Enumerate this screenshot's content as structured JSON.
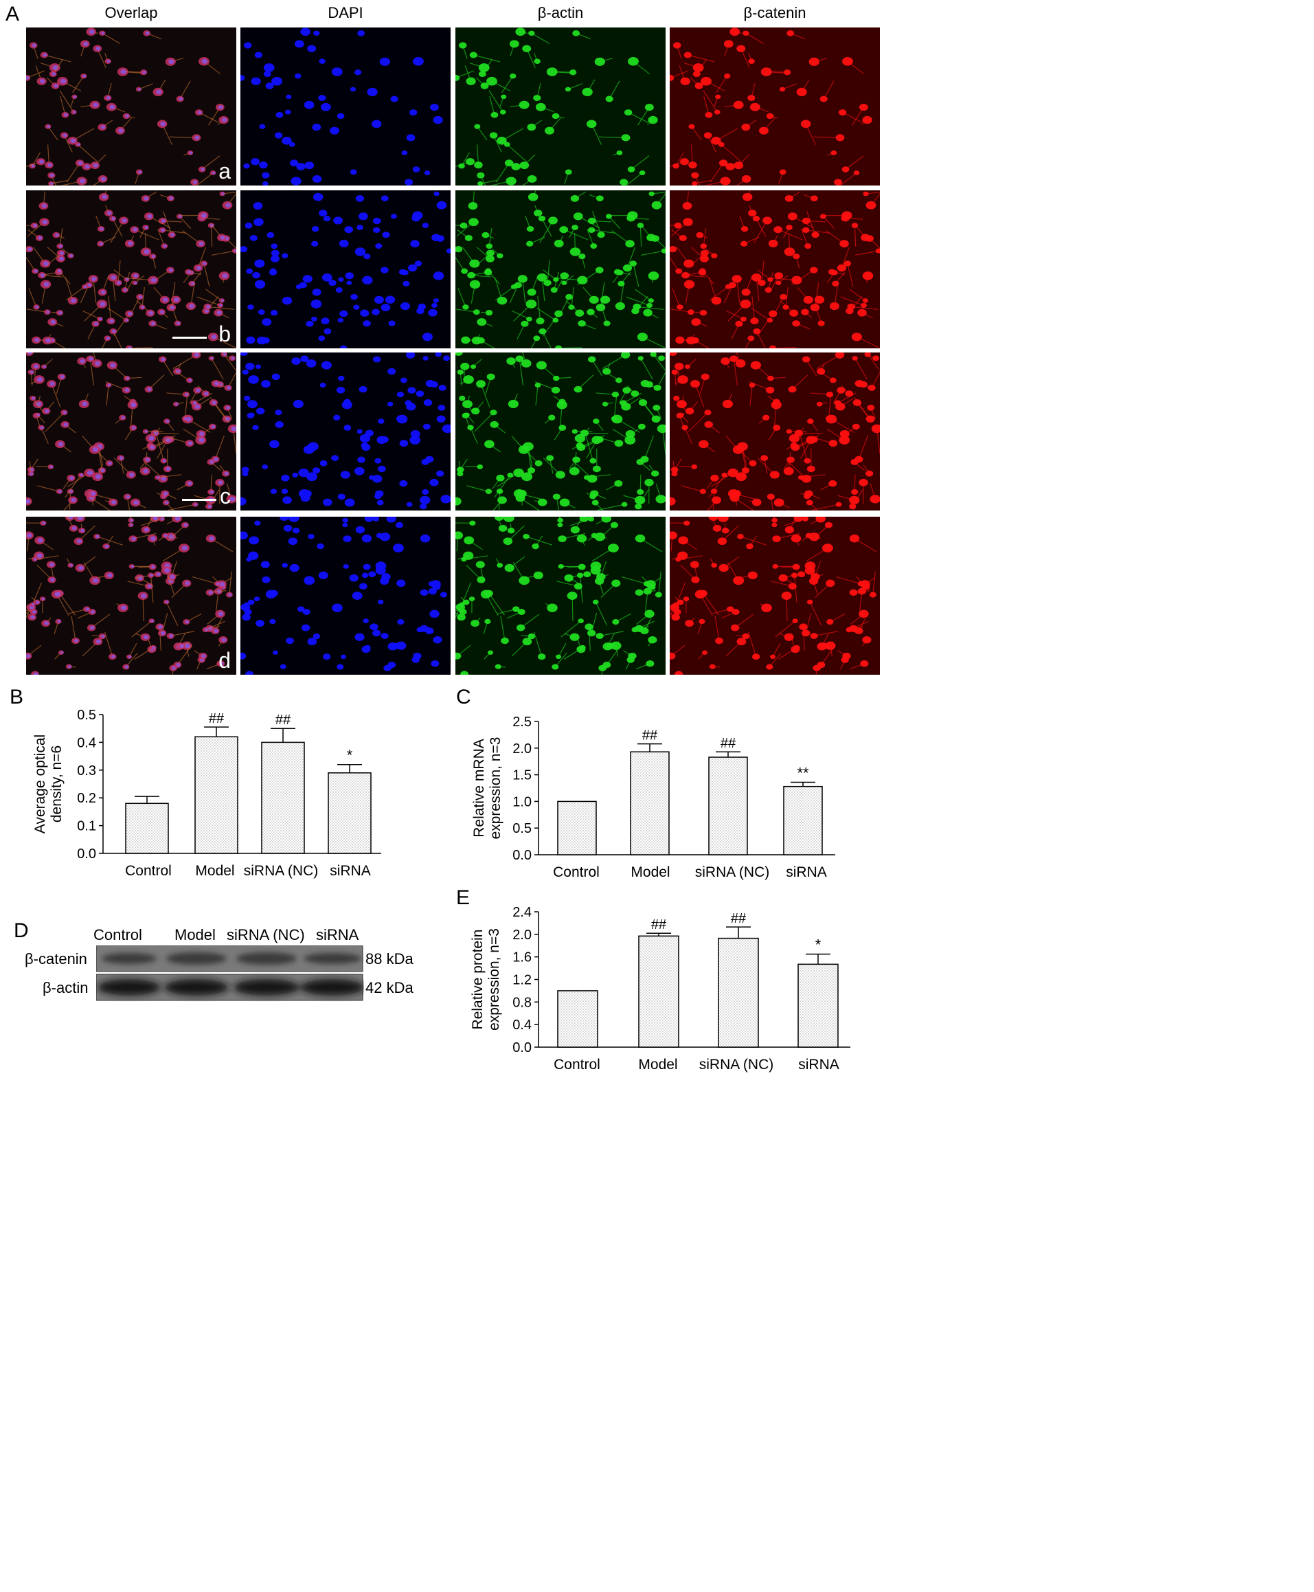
{
  "panel_letters": [
    "A",
    "B",
    "C",
    "D",
    "E"
  ],
  "panel_a": {
    "columns": [
      "Overlap",
      "DAPI",
      "β-actin",
      "β-catenin"
    ],
    "rows": [
      "a",
      "b",
      "c",
      "d"
    ],
    "colors": {
      "overlap": "#c83060",
      "dapi": "#1010ff",
      "actin": "#20dd20",
      "catenin": "#ff1010"
    }
  },
  "panel_d": {
    "lanes": [
      "Control",
      "Model",
      "siRNA (NC)",
      "siRNA"
    ],
    "bands": [
      {
        "protein": "β-catenin",
        "size": "88 kDa"
      },
      {
        "protein": "β-actin",
        "size": "42 kDa"
      }
    ]
  },
  "chart_data": [
    {
      "id": "B",
      "type": "bar",
      "categories": [
        "Control",
        "Model",
        "siRNA (NC)",
        "siRNA"
      ],
      "values": [
        0.18,
        0.42,
        0.4,
        0.29
      ],
      "errors": [
        0.025,
        0.035,
        0.05,
        0.03
      ],
      "annotations": [
        "",
        "##",
        "##",
        "*"
      ],
      "ylabel": "Average optical density, n=6",
      "ylim": [
        0,
        0.5
      ],
      "yticks": [
        "0.0",
        "0.1",
        "0.2",
        "0.3",
        "0.4",
        "0.5"
      ]
    },
    {
      "id": "C",
      "type": "bar",
      "categories": [
        "Control",
        "Model",
        "siRNA (NC)",
        "siRNA"
      ],
      "values": [
        1.0,
        1.93,
        1.83,
        1.28
      ],
      "errors": [
        0,
        0.15,
        0.1,
        0.08
      ],
      "annotations": [
        "",
        "##",
        "##",
        "**"
      ],
      "ylabel": "Relative mRNA expression, n=3",
      "ylim": [
        0,
        2.5
      ],
      "yticks": [
        "0.0",
        "0.5",
        "1.0",
        "1.5",
        "2.0",
        "2.5"
      ]
    },
    {
      "id": "E",
      "type": "bar",
      "categories": [
        "Control",
        "Model",
        "siRNA (NC)",
        "siRNA"
      ],
      "values": [
        1.0,
        1.97,
        1.93,
        1.47
      ],
      "errors": [
        0,
        0.05,
        0.2,
        0.18
      ],
      "annotations": [
        "",
        "##",
        "##",
        "*"
      ],
      "ylabel": "Relative protein expression, n=3",
      "ylim": [
        0,
        2.4
      ],
      "yticks": [
        "0.0",
        "0.4",
        "0.8",
        "1.2",
        "1.6",
        "2.0",
        "2.4"
      ]
    }
  ]
}
